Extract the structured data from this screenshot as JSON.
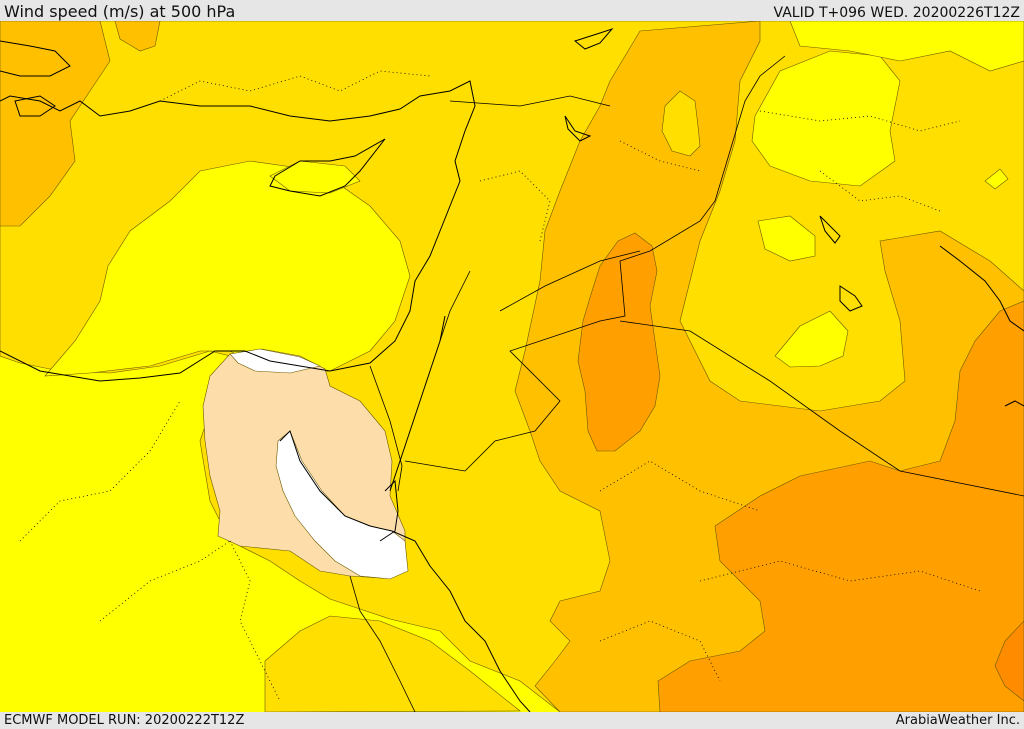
{
  "header": {
    "title": "Wind speed (m/s) at 500 hPa",
    "valid": "VALID T+096 WED. 20200226T12Z"
  },
  "footer": {
    "model_run": "ECMWF MODEL RUN: 20200222T12Z",
    "credit": "ArabiaWeather Inc."
  },
  "map": {
    "fill_colors": {
      "white": "#ffffff",
      "wheat": "#fddeaa",
      "yellow": "#ffff00",
      "gold": "#ffdf00",
      "amber": "#ffc000",
      "orange": "#ffa000",
      "dark_orange": "#ff8c00",
      "red_orange": "#ff7800"
    }
  }
}
